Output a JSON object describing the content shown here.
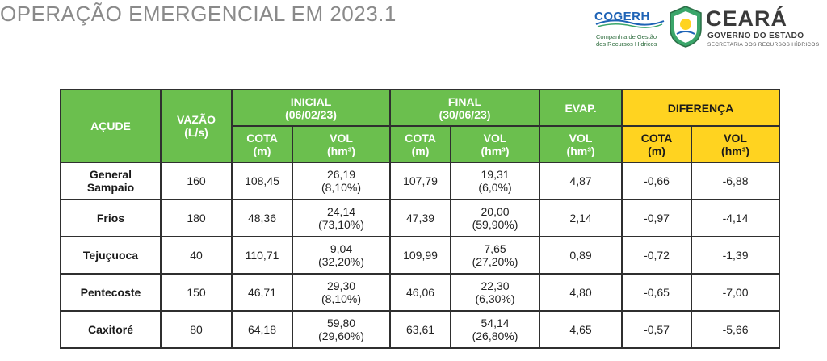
{
  "title": "OPERAÇÃO EMERGENCIAL EM 2023.1",
  "logos": {
    "cogerh": {
      "name": "COGERH",
      "line1": "Companhia de Gestão",
      "line2": "dos Recursos Hídricos",
      "color": "#1e63b6"
    },
    "ceara": {
      "name": "CEARÁ",
      "line1": "GOVERNO DO ESTADO",
      "line2": "SECRETARIA DOS RECURSOS HÍDRICOS",
      "seal_color": "#3aa66a"
    }
  },
  "colors": {
    "header_green": "#6bbf4e",
    "header_yellow": "#ffd320"
  },
  "table": {
    "headers": {
      "acude": "AÇUDE",
      "vazao": "VAZÃO",
      "vazao_unit": "(L/s)",
      "inicial": "INICIAL",
      "inicial_date": "(06/02/23)",
      "final": "FINAL",
      "final_date": "(30/06/23)",
      "evap": "EVAP.",
      "diferenca": "DIFERENÇA",
      "cota": "COTA",
      "cota_unit": "(m)",
      "vol": "VOL",
      "vol_unit": "(hm³)"
    },
    "rows": [
      {
        "name1": "General",
        "name2": "Sampaio",
        "vazao": "160",
        "ini_cota": "108,45",
        "ini_vol": "26,19",
        "ini_pct": "(8,10%)",
        "fin_cota": "107,79",
        "fin_vol": "19,31",
        "fin_pct": "(6,0%)",
        "evap": "4,87",
        "dif_cota": "-0,66",
        "dif_vol": "-6,88"
      },
      {
        "name1": "Frios",
        "name2": "",
        "vazao": "180",
        "ini_cota": "48,36",
        "ini_vol": "24,14",
        "ini_pct": "(73,10%)",
        "fin_cota": "47,39",
        "fin_vol": "20,00",
        "fin_pct": "(59,90%)",
        "evap": "2,14",
        "dif_cota": "-0,97",
        "dif_vol": "-4,14"
      },
      {
        "name1": "Tejuçuoca",
        "name2": "",
        "vazao": "40",
        "ini_cota": "110,71",
        "ini_vol": "9,04",
        "ini_pct": "(32,20%)",
        "fin_cota": "109,99",
        "fin_vol": "7,65",
        "fin_pct": "(27,20%)",
        "evap": "0,89",
        "dif_cota": "-0,72",
        "dif_vol": "-1,39"
      },
      {
        "name1": "Pentecoste",
        "name2": "",
        "vazao": "150",
        "ini_cota": "46,71",
        "ini_vol": "29,30",
        "ini_pct": "(8,10%)",
        "fin_cota": "46,06",
        "fin_vol": "22,30",
        "fin_pct": "(6,30%)",
        "evap": "4,80",
        "dif_cota": "-0,65",
        "dif_vol": "-7,00"
      },
      {
        "name1": "Caxitoré",
        "name2": "",
        "vazao": "80",
        "ini_cota": "64,18",
        "ini_vol": "59,80",
        "ini_pct": "(29,60%)",
        "fin_cota": "63,61",
        "fin_vol": "54,14",
        "fin_pct": "(26,80%)",
        "evap": "4,65",
        "dif_cota": "-0,57",
        "dif_vol": "-5,66"
      }
    ]
  }
}
